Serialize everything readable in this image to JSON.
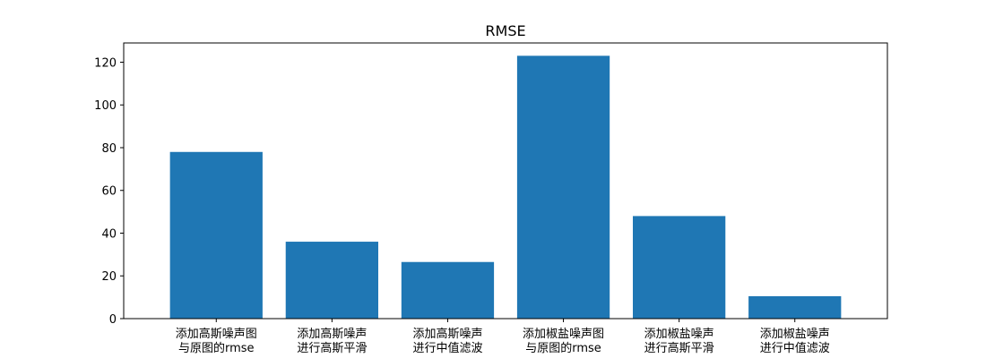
{
  "chart_data": {
    "type": "bar",
    "title": "RMSE",
    "xlabel": "",
    "ylabel": "",
    "categories": [
      [
        "添加高斯噪声图",
        "与原图的rmse"
      ],
      [
        "添加高斯噪声",
        "进行高斯平滑"
      ],
      [
        "添加高斯噪声",
        "进行中值滤波"
      ],
      [
        "添加椒盐噪声图",
        "与原图的rmse"
      ],
      [
        "添加椒盐噪声",
        "进行高斯平滑"
      ],
      [
        "添加椒盐噪声",
        "进行中值滤波"
      ]
    ],
    "values": [
      78,
      36,
      26.5,
      123,
      48,
      10.5
    ],
    "ylim": [
      0,
      129
    ],
    "yticks": [
      0,
      20,
      40,
      60,
      80,
      100,
      120
    ],
    "grid": false,
    "legend": "none",
    "bar_color": "#1f77b4"
  }
}
